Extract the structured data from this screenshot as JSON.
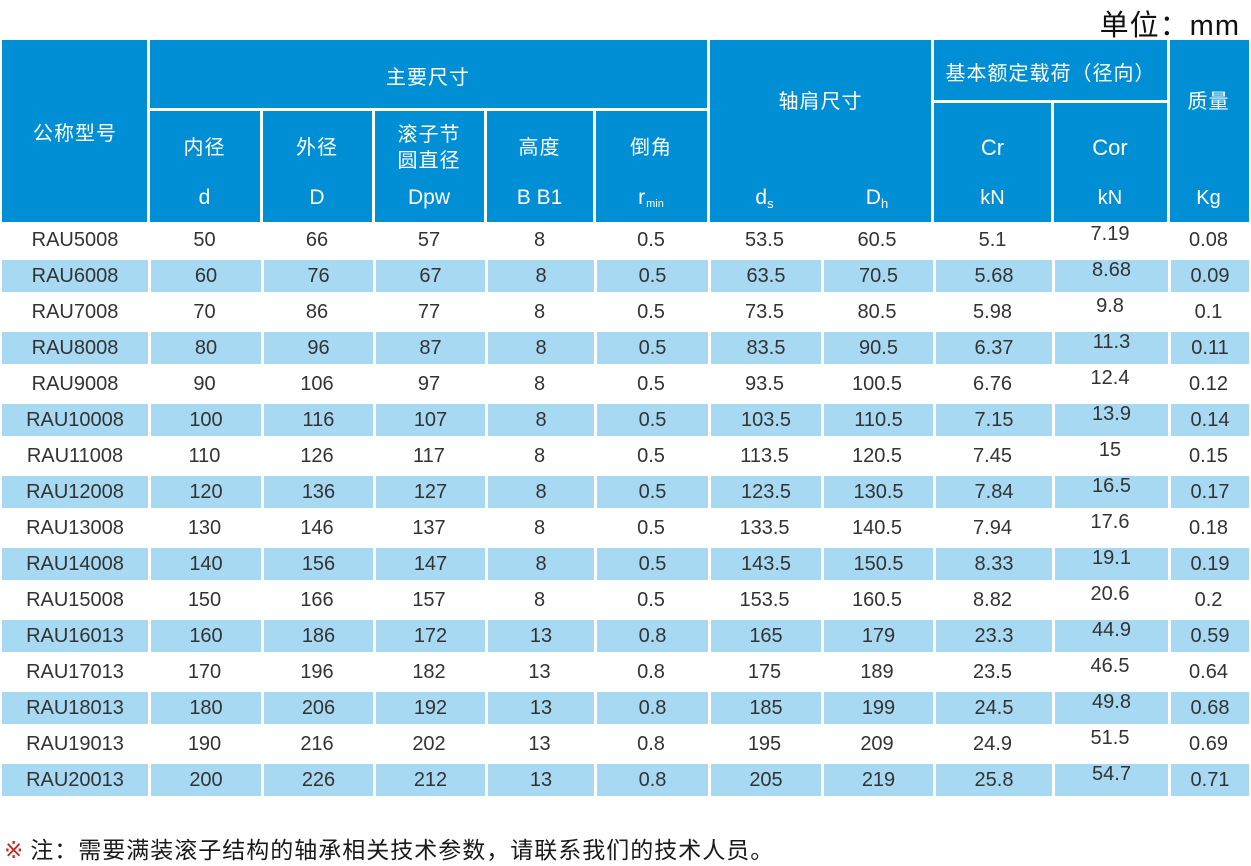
{
  "unit_label": "单位：mm",
  "colors": {
    "header_blue": "#008FD5",
    "row_blue": "#A8D9F2",
    "row_white": "#ffffff",
    "header_text": "#ffffff",
    "data_text": "#333333",
    "note_marker_red": "#C42B23"
  },
  "table": {
    "header": {
      "model_column": "公称型号",
      "main_dims": {
        "group_label": "主要尺寸",
        "columns": [
          {
            "label": "内径",
            "symbol": "d",
            "symbol_sub": ""
          },
          {
            "label": "外径",
            "symbol": "D",
            "symbol_sub": ""
          },
          {
            "label": "滚子节\n圆直径",
            "symbol": "Dpw",
            "symbol_sub": ""
          },
          {
            "label": "高度",
            "symbol": "B B1",
            "symbol_sub": ""
          },
          {
            "label": "倒角",
            "symbol": "r",
            "symbol_sub": "min"
          }
        ]
      },
      "shoulder_dims": {
        "group_label": "轴肩尺寸",
        "columns": [
          {
            "symbol": "d",
            "symbol_sub": "s"
          },
          {
            "symbol": "D",
            "symbol_sub": "h"
          }
        ]
      },
      "rated_load": {
        "group_label": "基本额定载荷（径向）",
        "columns": [
          {
            "label": "Cr",
            "unit": "kN"
          },
          {
            "label": "Cor",
            "unit": "kN"
          }
        ]
      },
      "mass_column": {
        "label": "质量",
        "unit": "Kg"
      }
    },
    "rows": [
      [
        "RAU5008",
        "50",
        "66",
        "57",
        "8",
        "0.5",
        "53.5",
        "60.5",
        "5.1",
        "7.19",
        "0.08"
      ],
      [
        "RAU6008",
        "60",
        "76",
        "67",
        "8",
        "0.5",
        "63.5",
        "70.5",
        "5.68",
        "8.68",
        "0.09"
      ],
      [
        "RAU7008",
        "70",
        "86",
        "77",
        "8",
        "0.5",
        "73.5",
        "80.5",
        "5.98",
        "9.8",
        "0.1"
      ],
      [
        "RAU8008",
        "80",
        "96",
        "87",
        "8",
        "0.5",
        "83.5",
        "90.5",
        "6.37",
        "11.3",
        "0.11"
      ],
      [
        "RAU9008",
        "90",
        "106",
        "97",
        "8",
        "0.5",
        "93.5",
        "100.5",
        "6.76",
        "12.4",
        "0.12"
      ],
      [
        "RAU10008",
        "100",
        "116",
        "107",
        "8",
        "0.5",
        "103.5",
        "110.5",
        "7.15",
        "13.9",
        "0.14"
      ],
      [
        "RAU11008",
        "110",
        "126",
        "117",
        "8",
        "0.5",
        "113.5",
        "120.5",
        "7.45",
        "15",
        "0.15"
      ],
      [
        "RAU12008",
        "120",
        "136",
        "127",
        "8",
        "0.5",
        "123.5",
        "130.5",
        "7.84",
        "16.5",
        "0.17"
      ],
      [
        "RAU13008",
        "130",
        "146",
        "137",
        "8",
        "0.5",
        "133.5",
        "140.5",
        "7.94",
        "17.6",
        "0.18"
      ],
      [
        "RAU14008",
        "140",
        "156",
        "147",
        "8",
        "0.5",
        "143.5",
        "150.5",
        "8.33",
        "19.1",
        "0.19"
      ],
      [
        "RAU15008",
        "150",
        "166",
        "157",
        "8",
        "0.5",
        "153.5",
        "160.5",
        "8.82",
        "20.6",
        "0.2"
      ],
      [
        "RAU16013",
        "160",
        "186",
        "172",
        "13",
        "0.8",
        "165",
        "179",
        "23.3",
        "44.9",
        "0.59"
      ],
      [
        "RAU17013",
        "170",
        "196",
        "182",
        "13",
        "0.8",
        "175",
        "189",
        "23.5",
        "46.5",
        "0.64"
      ],
      [
        "RAU18013",
        "180",
        "206",
        "192",
        "13",
        "0.8",
        "185",
        "199",
        "24.5",
        "49.8",
        "0.68"
      ],
      [
        "RAU19013",
        "190",
        "216",
        "202",
        "13",
        "0.8",
        "195",
        "209",
        "24.9",
        "51.5",
        "0.69"
      ],
      [
        "RAU20013",
        "200",
        "226",
        "212",
        "13",
        "0.8",
        "205",
        "219",
        "25.8",
        "54.7",
        "0.71"
      ]
    ]
  },
  "note": {
    "marker": "※",
    "text": "注：需要满装滚子结构的轴承相关技术参数，请联系我们的技术人员。"
  }
}
